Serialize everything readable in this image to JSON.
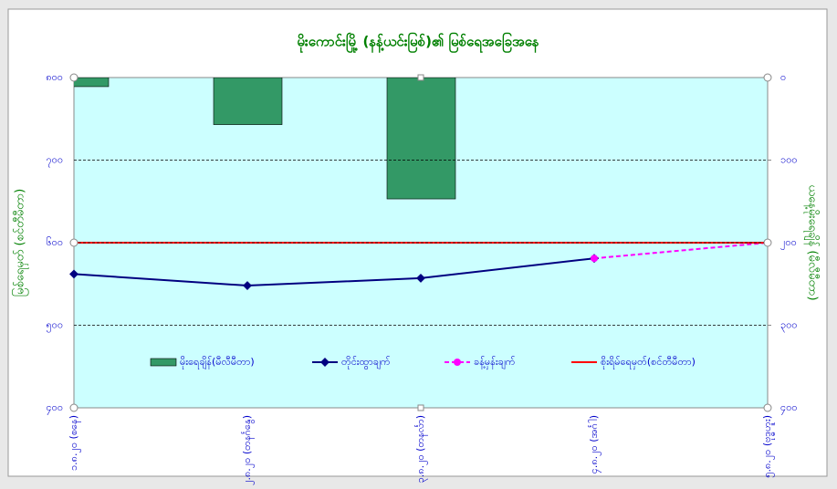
{
  "chart_data": {
    "type": "combo",
    "title": "မိုးကောင်းမြို့ (နန့်ယင်းမြစ်)၏ မြစ်ရေအခြေအနေ",
    "y_label": "မြစ်ရေမှတ် (စင်တီမီတာ)",
    "y2_label": "ယနေ့မိုးရေချိန် (မီလီမီတာ)",
    "categories": [
      "၁.၈.၂၀ (စနေ)",
      "၂.၈.၂၀ (တနင်္ဂနွေ)",
      "၃.၈.၂၀ (တနင်္လာ)",
      "၄.၈.၂၀ (အင်္ဂါ)",
      "၅.၈.၂၀ (ဗုဒ္ဓဟူး)"
    ],
    "ylim": [
      400,
      800
    ],
    "yticks": [
      {
        "value": 400,
        "label": "၄၀၀"
      },
      {
        "value": 500,
        "label": "၅၀၀"
      },
      {
        "value": 600,
        "label": "၆၀၀"
      },
      {
        "value": 700,
        "label": "၇၀၀"
      },
      {
        "value": 800,
        "label": "၈၀၀"
      }
    ],
    "y2lim": [
      0,
      400
    ],
    "y2_inverted": true,
    "y2ticks": [
      {
        "value": 0,
        "label": "၀"
      },
      {
        "value": 100,
        "label": "၁၀၀"
      },
      {
        "value": 200,
        "label": "၂၀၀"
      },
      {
        "value": 300,
        "label": "၃၀၀"
      },
      {
        "value": 400,
        "label": "၄၀၀"
      }
    ],
    "grid": true,
    "series": [
      {
        "name": "မိုးရေချိန်(မီလီမီတာ)",
        "kind": "bar",
        "axis": "y2",
        "color": "#339966",
        "values": [
          11,
          57,
          147,
          null,
          null
        ]
      },
      {
        "name": "တိုင်းထွာချက်",
        "kind": "line",
        "color": "#000080",
        "values": [
          562,
          548,
          557,
          581,
          null
        ]
      },
      {
        "name": "ခန့်မှန်းချက်",
        "kind": "dashed",
        "color": "#ff00ff",
        "values": [
          null,
          null,
          null,
          581,
          600
        ]
      },
      {
        "name": "စိုးရိမ်ရေမှတ်(စင်တီမီတာ)",
        "kind": "level",
        "color": "#ff0000",
        "values": [
          600,
          600,
          600,
          600,
          600
        ]
      }
    ]
  }
}
